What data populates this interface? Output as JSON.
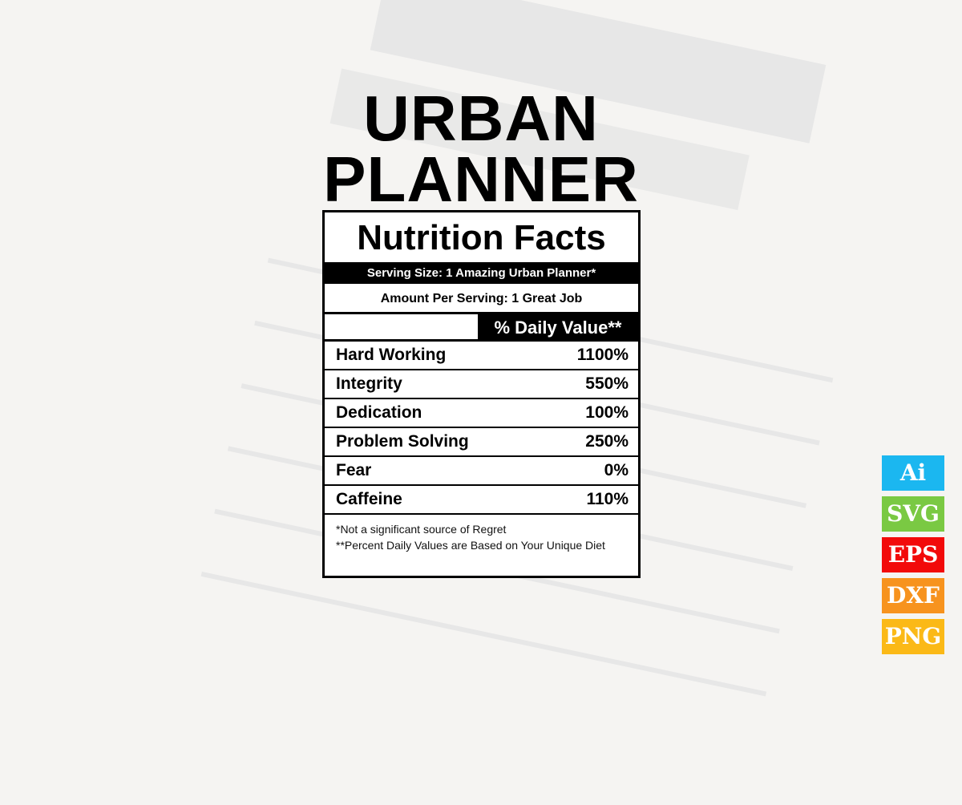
{
  "title": {
    "line1": "URBAN",
    "line2": "PLANNER"
  },
  "label": {
    "heading": "Nutrition Facts",
    "serving_size": "Serving Size: 1 Amazing Urban Planner*",
    "amount_per_serving": "Amount Per Serving: 1 Great Job",
    "daily_value_header": "% Daily Value**",
    "rows": [
      {
        "name": "Hard Working",
        "value": "1100%"
      },
      {
        "name": "Integrity",
        "value": "550%"
      },
      {
        "name": "Dedication",
        "value": "100%"
      },
      {
        "name": "Problem Solving",
        "value": "250%"
      },
      {
        "name": "Fear",
        "value": "0%"
      },
      {
        "name": "Caffeine",
        "value": "110%"
      }
    ],
    "footnote1": "*Not a significant source of Regret",
    "footnote2": "**Percent Daily Values are Based on Your Unique Diet"
  },
  "formats": [
    {
      "label": "Ai",
      "color": "#1bb7f0"
    },
    {
      "label": "SVG",
      "color": "#7ac943"
    },
    {
      "label": "EPS",
      "color": "#f20a0a"
    },
    {
      "label": "DXF",
      "color": "#f7931e"
    },
    {
      "label": "PNG",
      "color": "#fbb917"
    }
  ]
}
